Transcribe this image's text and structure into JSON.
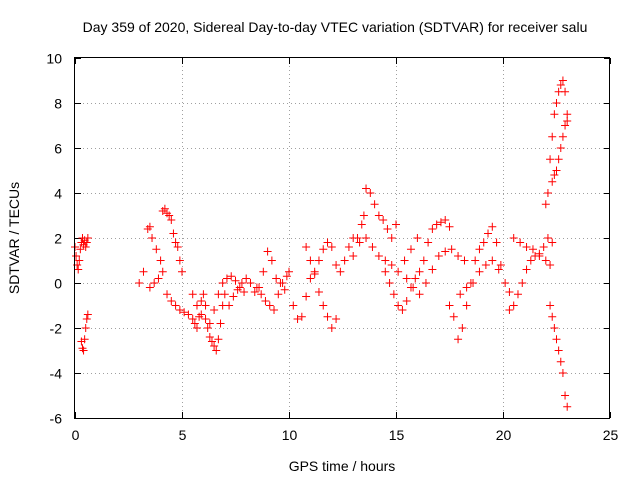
{
  "chart_data": {
    "type": "scatter",
    "title": "Day 359 of 2020, Sidereal Day-to-day VTEC variation (SDTVAR) for receiver salu",
    "xlabel": "GPS time / hours",
    "ylabel": "SDTVAR / TECUs",
    "xlim": [
      0,
      25
    ],
    "ylim": [
      -6,
      10
    ],
    "xticks": [
      0,
      5,
      10,
      15,
      20,
      25
    ],
    "yticks": [
      -6,
      -4,
      -2,
      0,
      2,
      4,
      6,
      8,
      10
    ],
    "xtick_labels": [
      "0",
      "5",
      "10",
      "15",
      "20",
      "25"
    ],
    "ytick_labels": [
      "-6",
      "-4",
      "-2",
      "0",
      "2",
      "4",
      "6",
      "8",
      "10"
    ],
    "grid": true,
    "marker": "+",
    "color": "#ff0000",
    "series": [
      {
        "name": "SDTVAR",
        "x": [
          0.0,
          0.05,
          0.1,
          0.15,
          0.2,
          0.25,
          0.3,
          0.35,
          0.4,
          0.45,
          0.5,
          0.55,
          0.6,
          0.3,
          0.35,
          0.4,
          0.45,
          0.5,
          0.55,
          0.6,
          3.0,
          3.2,
          3.4,
          3.5,
          3.6,
          3.8,
          4.0,
          4.1,
          4.2,
          4.3,
          4.4,
          4.5,
          4.6,
          4.7,
          4.8,
          4.9,
          5.0,
          3.5,
          3.7,
          3.9,
          4.1,
          4.3,
          4.5,
          4.7,
          4.9,
          5.1,
          5.3,
          5.5,
          5.6,
          5.7,
          5.8,
          5.9,
          6.0,
          6.1,
          6.2,
          6.3,
          6.4,
          6.5,
          6.6,
          6.7,
          6.8,
          6.9,
          7.0,
          5.5,
          5.7,
          5.9,
          6.1,
          6.3,
          6.5,
          6.7,
          6.9,
          7.1,
          7.3,
          7.5,
          7.7,
          7.9,
          7.2,
          7.4,
          7.6,
          7.8,
          8.0,
          8.2,
          8.4,
          8.6,
          8.8,
          9.0,
          9.2,
          9.4,
          9.6,
          9.8,
          10.0,
          8.5,
          8.7,
          8.9,
          9.1,
          9.3,
          9.5,
          9.7,
          9.9,
          10.2,
          10.4,
          10.6,
          10.8,
          11.0,
          11.2,
          11.4,
          11.6,
          11.8,
          12.0,
          12.2,
          12.4,
          12.6,
          12.8,
          13.0,
          10.8,
          11.0,
          11.2,
          11.4,
          11.6,
          11.8,
          12.0,
          12.2,
          13.2,
          13.4,
          13.5,
          13.6,
          13.8,
          14.0,
          14.2,
          14.4,
          14.6,
          14.8,
          15.0,
          13.0,
          13.3,
          13.6,
          13.9,
          14.2,
          14.5,
          14.8,
          15.1,
          15.4,
          15.7,
          16.0,
          14.5,
          14.7,
          14.9,
          15.1,
          15.3,
          15.5,
          15.7,
          15.9,
          16.1,
          16.3,
          16.5,
          16.7,
          16.9,
          17.1,
          17.3,
          17.5,
          15.5,
          15.8,
          16.1,
          16.4,
          16.7,
          17.0,
          17.3,
          17.6,
          17.9,
          18.2,
          17.5,
          17.7,
          17.9,
          18.1,
          18.3,
          18.5,
          18.7,
          18.9,
          19.1,
          19.3,
          19.5,
          19.7,
          19.9,
          20.1,
          20.3,
          18.0,
          18.3,
          18.6,
          18.9,
          19.2,
          19.5,
          19.8,
          20.3,
          20.5,
          20.7,
          20.9,
          21.1,
          21.3,
          21.5,
          21.7,
          21.9,
          22.1,
          22.3,
          20.5,
          20.8,
          21.1,
          21.4,
          21.7,
          22.0,
          22.2,
          22.0,
          22.1,
          22.2,
          22.3,
          22.4,
          22.5,
          22.6,
          22.7,
          22.8,
          22.9,
          23.0,
          22.3,
          22.4,
          22.5,
          22.6,
          22.7,
          22.8,
          22.9,
          23.0,
          22.2,
          22.3,
          22.4,
          22.5,
          22.6,
          22.7,
          22.8,
          22.9,
          23.0
        ],
        "y": [
          1.6,
          1.2,
          0.8,
          0.6,
          1.0,
          1.5,
          1.8,
          2.0,
          1.7,
          1.9,
          1.6,
          1.8,
          2.0,
          -2.6,
          -2.9,
          -3.0,
          -2.5,
          -2.0,
          -1.6,
          -1.4,
          0.0,
          0.5,
          2.4,
          2.5,
          2.0,
          1.5,
          1.0,
          3.2,
          3.3,
          3.1,
          3.0,
          2.8,
          2.2,
          1.8,
          1.6,
          1.0,
          0.5,
          -0.2,
          0.0,
          0.2,
          0.5,
          -0.5,
          -0.8,
          -1.0,
          -1.2,
          -1.3,
          -1.4,
          -1.6,
          -1.8,
          -2.0,
          -1.5,
          -0.8,
          -0.5,
          -1.0,
          -2.0,
          -2.4,
          -2.6,
          -2.8,
          -3.0,
          -2.5,
          -1.8,
          -1.0,
          -0.5,
          -0.5,
          -1.0,
          -1.4,
          -1.6,
          -1.8,
          -1.2,
          -0.5,
          0.0,
          0.2,
          0.3,
          0.1,
          -0.2,
          -0.4,
          -1.0,
          -0.6,
          -0.3,
          0.0,
          0.2,
          0.0,
          -0.4,
          -0.2,
          0.5,
          1.4,
          1.0,
          0.2,
          0.0,
          -0.3,
          0.5,
          -0.2,
          -0.5,
          -0.8,
          -1.0,
          -1.2,
          -0.5,
          0.0,
          0.3,
          -1.0,
          -1.6,
          -1.5,
          -0.6,
          0.2,
          0.5,
          1.0,
          1.5,
          1.8,
          1.6,
          0.8,
          0.5,
          1.0,
          1.6,
          2.0,
          1.6,
          1.0,
          0.4,
          -0.4,
          -1.0,
          -1.5,
          -2.0,
          -1.6,
          2.0,
          2.6,
          3.0,
          4.2,
          4.0,
          3.5,
          3.0,
          2.8,
          2.4,
          2.0,
          2.6,
          1.2,
          1.8,
          2.0,
          1.6,
          1.2,
          1.0,
          0.8,
          0.5,
          1.0,
          1.5,
          2.0,
          0.5,
          0.0,
          -0.5,
          -1.0,
          -1.2,
          -0.8,
          -0.2,
          0.2,
          0.5,
          1.0,
          1.8,
          2.4,
          2.6,
          2.7,
          2.8,
          2.5,
          0.2,
          -0.2,
          -0.5,
          0.0,
          0.6,
          1.2,
          1.4,
          1.5,
          1.2,
          1.0,
          -1.0,
          -1.5,
          -2.5,
          -2.0,
          -1.0,
          0.0,
          1.0,
          1.5,
          1.8,
          2.2,
          2.5,
          1.8,
          0.8,
          0.0,
          -0.4,
          -0.5,
          -0.2,
          0.0,
          0.5,
          0.8,
          1.0,
          0.6,
          -1.2,
          -1.0,
          -0.5,
          0.0,
          0.6,
          1.0,
          1.2,
          1.3,
          1.6,
          2.0,
          1.8,
          2.0,
          1.8,
          1.6,
          1.5,
          1.2,
          1.0,
          0.8,
          3.5,
          4.0,
          5.5,
          6.5,
          7.5,
          8.0,
          8.5,
          8.8,
          9.0,
          8.5,
          7.5,
          4.5,
          4.8,
          5.0,
          5.5,
          6.0,
          6.5,
          7.0,
          7.2,
          -1.0,
          -1.5,
          -2.0,
          -2.5,
          -3.0,
          -3.5,
          -4.0,
          -5.0,
          -5.5
        ]
      }
    ]
  }
}
